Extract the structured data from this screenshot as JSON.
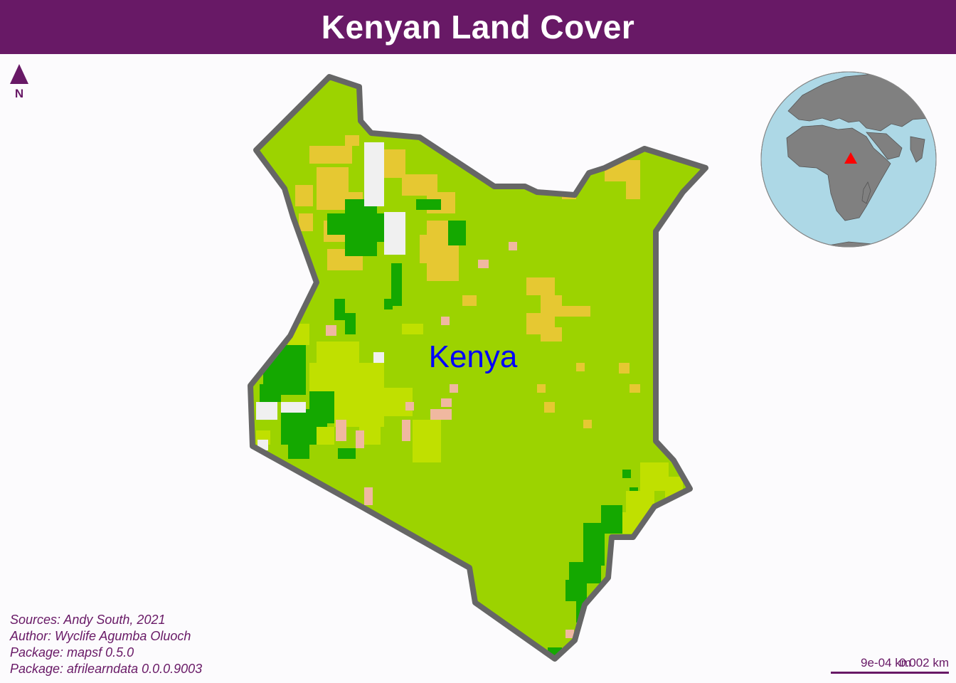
{
  "title": "Kenyan Land Cover",
  "north_arrow": {
    "label": "N",
    "icon": "north-arrow-icon"
  },
  "country_label": "Kenya",
  "credits": [
    "Sources: Andy South, 2021",
    "Author: Wyclife Agumba Oluoch",
    "Package: mapsf 0.5.0",
    "Package: afrilearndata 0.0.0.9003"
  ],
  "scale_bar": {
    "label_a": "0.002 km",
    "label_b": "9e-04 km"
  },
  "colors": {
    "title_bar": "#681966",
    "text": "#681966",
    "country_label": "#0000ff",
    "border": "#666666",
    "grassland": "#9cd300",
    "forest": "#14a800",
    "shrubland": "#c0e000",
    "bare_sparse": "#e6c832",
    "settlement": "#f0f0f0",
    "cropland": "#f0b8a0",
    "ocean": "#add8e6",
    "land": "#808080",
    "locator": "#ff0000"
  },
  "locator_globe": {
    "highlight": "Kenya",
    "marker": "triangle"
  }
}
